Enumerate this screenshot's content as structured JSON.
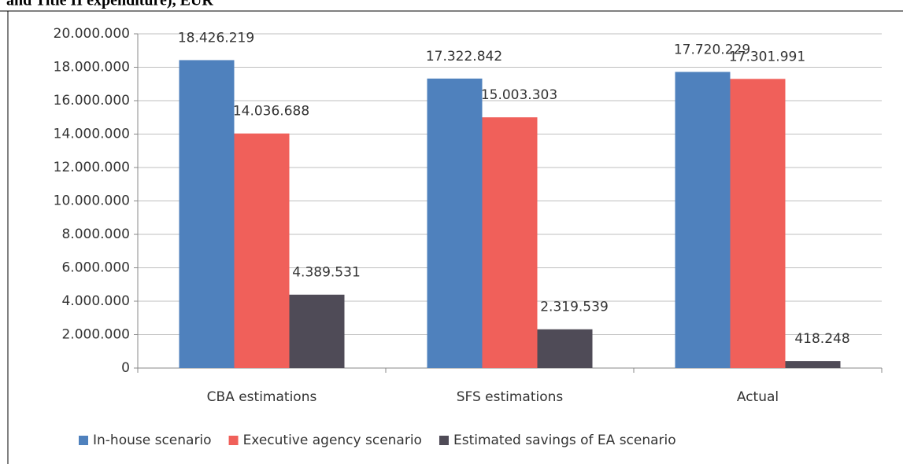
{
  "chart_data": {
    "type": "bar",
    "title": "and Title II expenditure), EUR",
    "categories": [
      "CBA estimations",
      "SFS estimations",
      "Actual"
    ],
    "series": [
      {
        "name": "In-house scenario",
        "color": "#4f81bd",
        "values": [
          18426219,
          17322842,
          17720229
        ],
        "value_labels": [
          "18.426.219",
          "17.322.842",
          "17.720.229"
        ]
      },
      {
        "name": "Executive agency scenario",
        "color": "#f0605a",
        "values": [
          14036688,
          15003303,
          17301991
        ],
        "value_labels": [
          "14.036.688",
          "15.003.303",
          "17.301.991"
        ]
      },
      {
        "name": "Estimated savings of EA scenario",
        "color": "#4f4b57",
        "values": [
          4389531,
          2319539,
          418248
        ],
        "value_labels": [
          "4.389.531",
          "2.319.539",
          "418.248"
        ]
      }
    ],
    "ylim": [
      0,
      20000000
    ],
    "yticks": [
      0,
      {
        "value": 2000000,
        "label": "2.000.000"
      },
      {
        "value": 4000000,
        "label": "4.000.000"
      },
      {
        "value": 6000000,
        "label": "6.000.000"
      },
      {
        "value": 8000000,
        "label": "8.000.000"
      },
      {
        "value": 10000000,
        "label": "10.000.000"
      },
      {
        "value": 12000000,
        "label": "12.000.000"
      },
      {
        "value": 14000000,
        "label": "14.000.000"
      },
      {
        "value": 16000000,
        "label": "16.000.000"
      },
      {
        "value": 18000000,
        "label": "18.000.000"
      },
      {
        "value": 20000000,
        "label": "20.000.000"
      }
    ],
    "grid": true,
    "legend": "bottom"
  }
}
